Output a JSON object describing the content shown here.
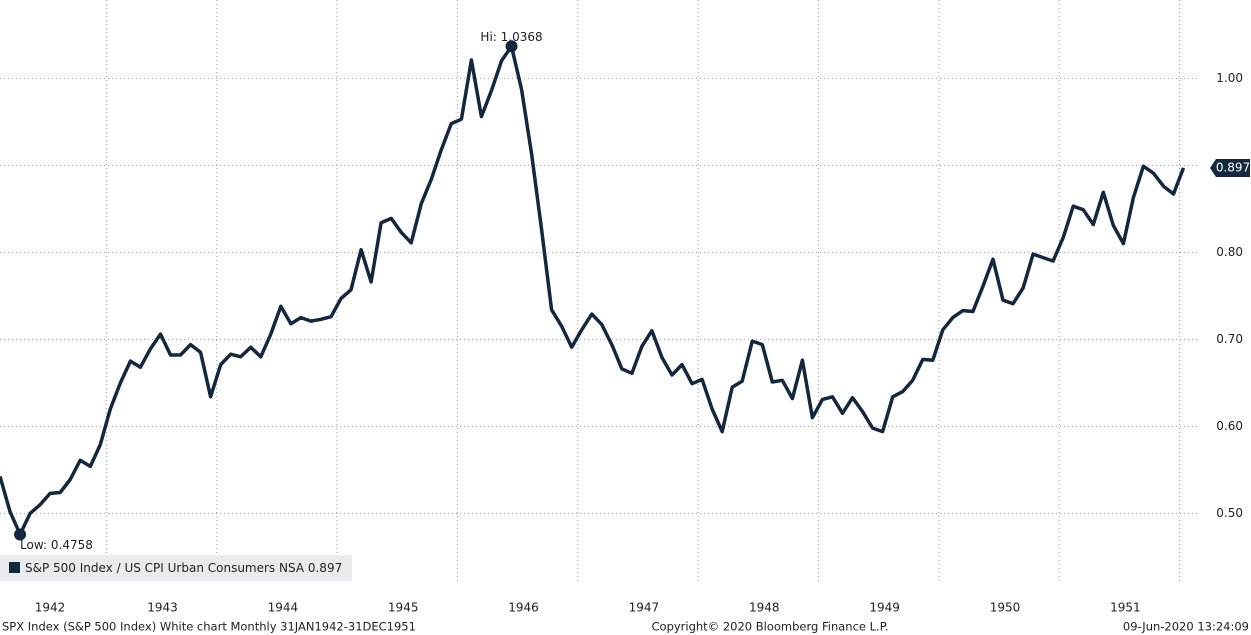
{
  "chart_data": {
    "type": "line",
    "categories": [
      null,
      null,
      null,
      null,
      null,
      "1942",
      null,
      null,
      null,
      null,
      null,
      null,
      null,
      null,
      null,
      null,
      "1943",
      null,
      null,
      null,
      null,
      null,
      null,
      null,
      null,
      null,
      null,
      null,
      "1944",
      null,
      null,
      null,
      null,
      null,
      null,
      null,
      null,
      null,
      null,
      null,
      "1945",
      null,
      null,
      null,
      null,
      null,
      null,
      null,
      null,
      null,
      null,
      null,
      "1946",
      null,
      null,
      null,
      null,
      null,
      null,
      null,
      null,
      null,
      null,
      null,
      "1947",
      null,
      null,
      null,
      null,
      null,
      null,
      null,
      null,
      null,
      null,
      null,
      "1948",
      null,
      null,
      null,
      null,
      null,
      null,
      null,
      null,
      null,
      null,
      null,
      "1949",
      null,
      null,
      null,
      null,
      null,
      null,
      null,
      null,
      null,
      null,
      null,
      "1950",
      null,
      null,
      null,
      null,
      null,
      null,
      null,
      null,
      null,
      null,
      null,
      "1951",
      null,
      null,
      null,
      null,
      null,
      null
    ],
    "series": [
      {
        "name": "S&P 500 Index / US CPI Urban Consumers NSA",
        "color": "#13283e",
        "values": [
          0.5425,
          0.502,
          0.4758,
          0.5,
          0.51,
          0.523,
          0.524,
          0.539,
          0.561,
          0.554,
          0.579,
          0.62,
          0.65,
          0.675,
          0.668,
          0.689,
          0.706,
          0.682,
          0.682,
          0.694,
          0.685,
          0.634,
          0.671,
          0.683,
          0.68,
          0.691,
          0.68,
          0.706,
          0.738,
          0.718,
          0.725,
          0.721,
          0.723,
          0.726,
          0.747,
          0.757,
          0.803,
          0.766,
          0.834,
          0.839,
          0.823,
          0.811,
          0.856,
          0.884,
          0.918,
          0.948,
          0.953,
          1.021,
          0.956,
          0.986,
          1.02,
          1.0368,
          0.987,
          0.913,
          0.826,
          0.734,
          0.715,
          0.691,
          0.711,
          0.729,
          0.717,
          0.694,
          0.666,
          0.661,
          0.692,
          0.71,
          0.679,
          0.659,
          0.671,
          0.649,
          0.654,
          0.62,
          0.594,
          0.645,
          0.652,
          0.698,
          0.694,
          0.651,
          0.653,
          0.632,
          0.676,
          0.61,
          0.631,
          0.634,
          0.615,
          0.633,
          0.617,
          0.598,
          0.594,
          0.634,
          0.64,
          0.653,
          0.677,
          0.676,
          0.711,
          0.725,
          0.733,
          0.732,
          0.761,
          0.792,
          0.745,
          0.741,
          0.759,
          0.798,
          0.794,
          0.79,
          0.817,
          0.853,
          0.849,
          0.832,
          0.869,
          0.831,
          0.81,
          0.863,
          0.899,
          0.891,
          0.876,
          0.867,
          0.897
        ],
        "value_labels": [
          null,
          null,
          "Low: 0.4758",
          null,
          null,
          null,
          null,
          null,
          null,
          null,
          null,
          null,
          null,
          null,
          null,
          null,
          null,
          null,
          null,
          null,
          null,
          null,
          null,
          null,
          null,
          null,
          null,
          null,
          null,
          null,
          null,
          null,
          null,
          null,
          null,
          null,
          null,
          null,
          null,
          null,
          null,
          null,
          null,
          null,
          null,
          null,
          null,
          null,
          null,
          null,
          null,
          "Hi: 1.0368",
          null,
          null,
          null,
          null,
          null,
          null,
          null,
          null,
          null,
          null,
          null,
          null,
          null,
          null,
          null,
          null,
          null,
          null,
          null,
          null,
          null,
          null,
          null,
          null,
          null,
          null,
          null,
          null,
          null,
          null,
          null,
          null,
          null,
          null,
          null,
          null,
          null,
          null,
          null,
          null,
          null,
          null,
          null,
          null,
          null,
          null,
          null,
          null,
          null,
          null,
          null,
          null,
          null,
          null,
          null,
          null,
          null,
          null,
          null,
          null,
          null,
          null,
          null,
          null,
          null,
          null,
          "0.897"
        ]
      }
    ],
    "ylim": [
      0.42,
      1.09
    ],
    "yticks": [
      {
        "value": 0.5,
        "label": "0.50"
      },
      {
        "value": 0.6,
        "label": "0.60"
      },
      {
        "value": 0.7,
        "label": "0.70"
      },
      {
        "value": 0.8,
        "label": "0.80"
      },
      {
        "value": 0.9,
        "label": "0.90"
      },
      {
        "value": 1.0,
        "label": "1.00"
      }
    ],
    "grid": true
  },
  "footer": {
    "left": "SPX Index (S&P 500 Index) White chart  Monthly 31JAN1942-31DEC1951",
    "center": "Copyright© 2020 Bloomberg Finance L.P.",
    "right": "09-Jun-2020 13:24:09"
  }
}
